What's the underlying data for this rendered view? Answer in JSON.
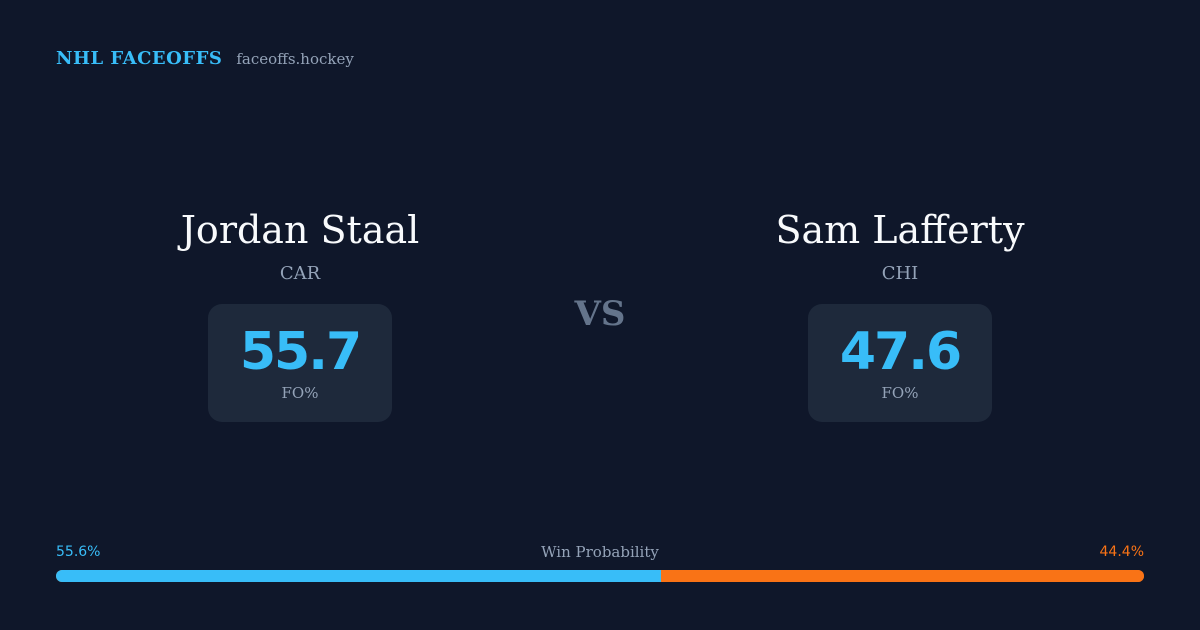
{
  "brand": {
    "name": "NHL FACEOFFS",
    "domain": "faceoffs.hockey"
  },
  "player_left": {
    "name": "Jordan Staal",
    "team": "CAR",
    "fo_value": "55.7",
    "fo_label": "FO%"
  },
  "player_right": {
    "name": "Sam Lafferty",
    "team": "CHI",
    "fo_value": "47.6",
    "fo_label": "FO%"
  },
  "vs_label": "VS",
  "win_probability": {
    "title": "Win Probability",
    "left_label": "55.6%",
    "right_label": "44.4%",
    "left_fraction": 0.556,
    "right_fraction": 0.444
  },
  "colors": {
    "background": "#0f172a",
    "card": "#1e293b",
    "accent_left": "#38bdf8",
    "accent_right": "#f97316",
    "muted": "#94a3b8"
  }
}
